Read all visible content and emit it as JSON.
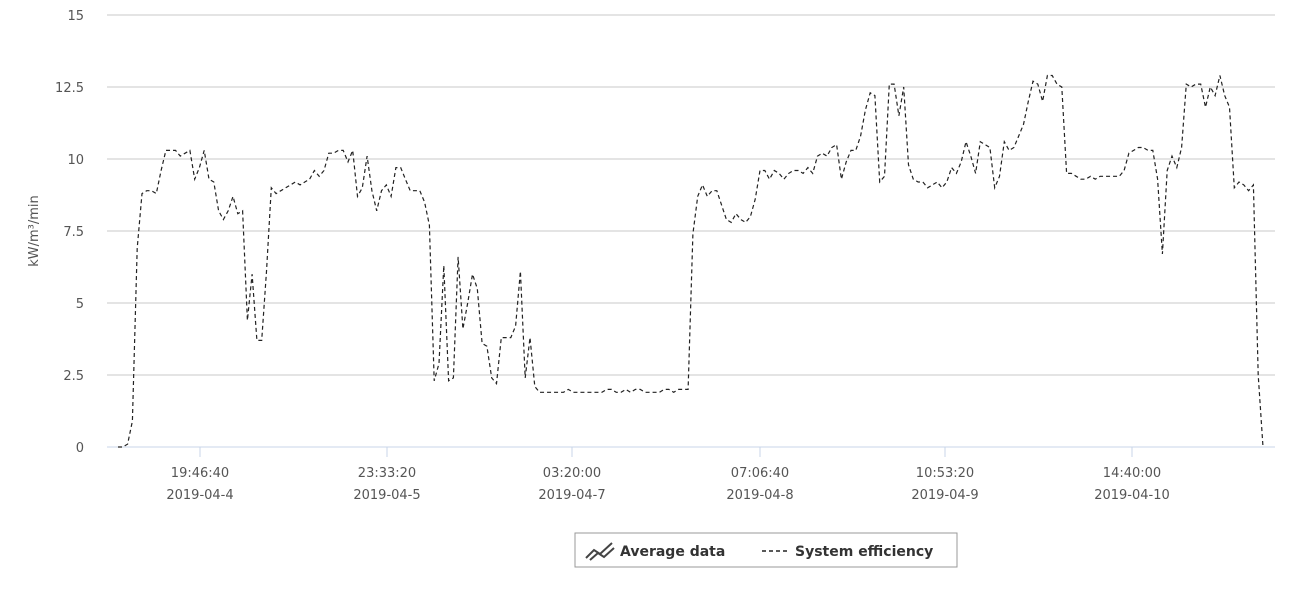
{
  "chart_data": {
    "type": "line",
    "xlabel": "",
    "ylabel": "kW/m³/min",
    "ylim": [
      0,
      15
    ],
    "y_ticks": [
      "0",
      "2.5",
      "5",
      "7.5",
      "10",
      "12.5",
      "15"
    ],
    "x_tick_labels": [
      {
        "time": "19:46:40",
        "date": "2019-04-4"
      },
      {
        "time": "23:33:20",
        "date": "2019-04-5"
      },
      {
        "time": "03:20:00",
        "date": "2019-04-7"
      },
      {
        "time": "07:06:40",
        "date": "2019-04-8"
      },
      {
        "time": "10:53:20",
        "date": "2019-04-9"
      },
      {
        "time": "14:40:00",
        "date": "2019-04-10"
      }
    ],
    "grid": true,
    "legend_position": "bottom-center",
    "legend": [
      {
        "name": "Average data",
        "icon": "trend-lines-icon"
      },
      {
        "name": "System efficiency",
        "icon": "dashed-line-icon"
      }
    ],
    "series": [
      {
        "name": "System efficiency",
        "style": "dashed",
        "color": "#222222",
        "values": [
          0,
          0,
          0.1,
          0.9,
          6.9,
          8.8,
          8.9,
          8.9,
          8.8,
          9.6,
          10.3,
          10.3,
          10.3,
          10.1,
          10.2,
          10.3,
          9.3,
          9.7,
          10.3,
          9.3,
          9.2,
          8.2,
          7.9,
          8.2,
          8.7,
          8.1,
          8.2,
          4.4,
          6.0,
          3.7,
          3.7,
          6.1,
          9.0,
          8.8,
          8.9,
          9.0,
          9.1,
          9.2,
          9.1,
          9.2,
          9.3,
          9.6,
          9.4,
          9.6,
          10.2,
          10.2,
          10.3,
          10.3,
          9.9,
          10.3,
          8.7,
          9.0,
          10.1,
          8.9,
          8.2,
          8.9,
          9.1,
          8.7,
          9.7,
          9.7,
          9.3,
          8.9,
          8.9,
          8.9,
          8.5,
          7.7,
          2.3,
          2.9,
          6.3,
          2.3,
          2.4,
          6.6,
          4.1,
          5.0,
          6.0,
          5.5,
          3.6,
          3.5,
          2.4,
          2.2,
          3.8,
          3.8,
          3.8,
          4.2,
          6.1,
          2.4,
          3.8,
          2.1,
          1.9,
          1.9,
          1.9,
          1.9,
          1.9,
          1.9,
          2.0,
          1.9,
          1.9,
          1.9,
          1.9,
          1.9,
          1.9,
          1.9,
          2.0,
          2.0,
          1.9,
          1.9,
          2.0,
          1.9,
          2.0,
          2.0,
          1.9,
          1.9,
          1.9,
          1.9,
          2.0,
          2.0,
          1.9,
          2.0,
          2.0,
          2.0,
          7.4,
          8.7,
          9.1,
          8.7,
          8.9,
          8.9,
          8.4,
          7.9,
          7.8,
          8.1,
          7.9,
          7.8,
          8.0,
          8.6,
          9.6,
          9.6,
          9.3,
          9.6,
          9.5,
          9.3,
          9.5,
          9.6,
          9.6,
          9.5,
          9.7,
          9.5,
          10.1,
          10.2,
          10.1,
          10.4,
          10.5,
          9.3,
          9.9,
          10.3,
          10.3,
          10.8,
          11.7,
          12.3,
          12.2,
          9.2,
          9.4,
          12.6,
          12.6,
          11.5,
          12.5,
          9.8,
          9.3,
          9.2,
          9.2,
          9.0,
          9.1,
          9.2,
          9.0,
          9.2,
          9.7,
          9.5,
          9.9,
          10.6,
          10.1,
          9.5,
          10.6,
          10.5,
          10.4,
          9.0,
          9.4,
          10.6,
          10.3,
          10.4,
          10.8,
          11.2,
          12.0,
          12.7,
          12.6,
          12.0,
          12.9,
          12.9,
          12.6,
          12.5,
          9.5,
          9.5,
          9.4,
          9.3,
          9.3,
          9.4,
          9.3,
          9.4,
          9.4,
          9.4,
          9.4,
          9.4,
          9.6,
          10.2,
          10.3,
          10.4,
          10.4,
          10.3,
          10.3,
          9.3,
          6.7,
          9.6,
          10.1,
          9.7,
          10.4,
          12.6,
          12.5,
          12.6,
          12.6,
          11.8,
          12.5,
          12.2,
          12.9,
          12.2,
          11.8,
          9.0,
          9.2,
          9.1,
          8.9,
          9.1,
          2.5,
          0
        ]
      }
    ]
  }
}
